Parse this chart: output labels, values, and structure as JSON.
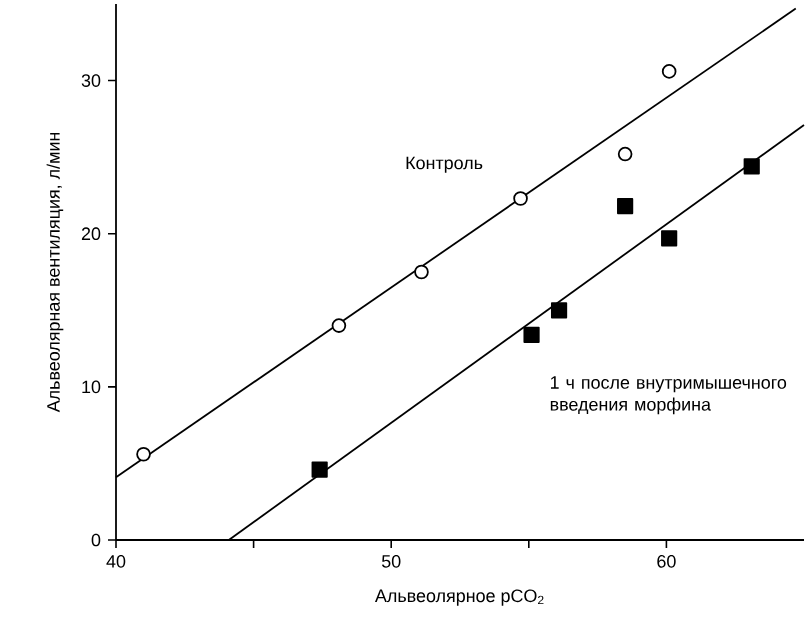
{
  "chart_data": {
    "type": "scatter",
    "xlabel": "Альвеолярное pCO$_{2}$",
    "ylabel": "Альвеолярная вентиляция, л/мин",
    "xlim": [
      40,
      65
    ],
    "ylim": [
      0,
      35
    ],
    "xticks": [
      40,
      {
        "value": 45,
        "label": null
      },
      50,
      {
        "value": 55,
        "label": null
      },
      60
    ],
    "yticks": [
      0,
      10,
      20,
      30
    ],
    "grid": false,
    "legend": false,
    "series": [
      {
        "name": "Контроль",
        "marker": "circle",
        "color": "#000000",
        "x": [
          41.0,
          48.1,
          51.1,
          54.7,
          58.5,
          60.1
        ],
        "values": [
          5.6,
          14.0,
          17.5,
          22.3,
          25.2,
          30.6
        ]
      },
      {
        "name": "1 ч после внутримышечного введения морфина",
        "marker": "square",
        "color": "#000000",
        "x": [
          47.4,
          55.1,
          56.1,
          58.5,
          60.1,
          63.1
        ],
        "values": [
          4.6,
          13.4,
          15.0,
          21.8,
          19.7,
          24.4
        ]
      },
      {
        "type": "line",
        "marker": "none",
        "line_style": "solid",
        "color": "#000000",
        "x": [
          40,
          64.7
        ],
        "values": [
          4.1,
          34.7
        ]
      },
      {
        "type": "line",
        "marker": "none",
        "line_style": "solid",
        "color": "#000000",
        "x": [
          44.1,
          65
        ],
        "values": [
          0,
          27.1
        ]
      }
    ]
  }
}
